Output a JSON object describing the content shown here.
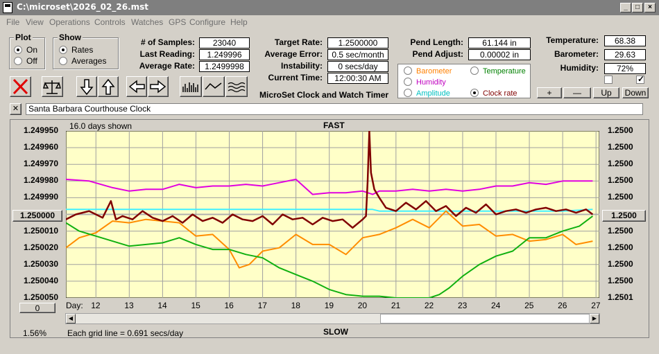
{
  "window": {
    "title": "C:\\microset\\2026_02_26.mst"
  },
  "menu": [
    "File",
    "View",
    "Operations",
    "Controls",
    "Watches",
    "GPS",
    "Configure",
    "Help"
  ],
  "plot_group": {
    "title": "Plot",
    "on": "On",
    "off": "Off",
    "selected": "On"
  },
  "show_group": {
    "title": "Show",
    "rates": "Rates",
    "averages": "Averages",
    "selected": "Rates"
  },
  "stats": {
    "samples_label": "# of Samples:",
    "samples": "23040",
    "last_reading_label": "Last Reading:",
    "last_reading": "1.249996",
    "average_rate_label": "Average Rate:",
    "average_rate": "1.2499998",
    "target_rate_label": "Target Rate:",
    "target_rate": "1.2500000",
    "average_error_label": "Average Error:",
    "average_error": "0.5 sec/month",
    "instability_label": "Instability:",
    "instability": "0 secs/day",
    "current_time_label": "Current Time:",
    "current_time": "12:00:30 AM",
    "pend_length_label": "Pend Length:",
    "pend_length": "61.144 in",
    "pend_adjust_label": "Pend Adjust:",
    "pend_adjust": "0.00002 in",
    "temperature_label": "Temperature:",
    "temperature": "68.38",
    "barometer_label": "Barometer:",
    "barometer": "29.63",
    "humidity_label": "Humidity:",
    "humidity": "72%"
  },
  "app_caption": "MicroSet Clock and Watch Timer",
  "series_selector": {
    "barometer": "Barometer",
    "temperature": "Temperature",
    "humidity": "Humidity",
    "amplitude": "Amplitude",
    "clock_rate": "Clock rate",
    "selected": "Clock rate"
  },
  "adjust_buttons": {
    "plus": "+",
    "minus": "—",
    "up": "Up",
    "down": "Down"
  },
  "clock_name": "Santa Barbara Courthouse Clock",
  "close_glyph": "✕",
  "chart_header": {
    "days_shown": "16.0 days shown",
    "fast": "FAST",
    "slow": "SLOW"
  },
  "center_value": "1.250000",
  "right_center_value": "1.2500",
  "zero_button": "0",
  "footer": {
    "percent": "1.56%",
    "grid_note": "Each grid line = 0.691 secs/day"
  },
  "colors": {
    "plot_bg": "#ffffc8",
    "clock_rate": "#800000",
    "humidity": "#e000e0",
    "amplitude": "#40f0ff",
    "barometer": "#ff8c00",
    "temperature": "#10b010",
    "barometer_label": "#ff8000",
    "temperature_label": "#008000",
    "humidity_label": "#c000c0",
    "amplitude_label": "#00c0c0",
    "clock_rate_label": "#800000"
  },
  "chart_data": {
    "type": "line",
    "x_axis_label": "Day:",
    "xlim": [
      11.1,
      27.1
    ],
    "y_left_ticks": [
      "1.249950",
      "1.249960",
      "1.249970",
      "1.249980",
      "1.249990",
      "",
      "1.250010",
      "1.250020",
      "1.250030",
      "1.250040",
      "1.250050"
    ],
    "y_right_ticks": [
      "1.2500",
      "1.2500",
      "1.2500",
      "1.2500",
      "1.2500",
      "",
      "1.2500",
      "1.2500",
      "1.2500",
      "1.2500",
      "1.2501"
    ],
    "ylim": [
      1.25005,
      1.24995
    ],
    "x_ticks": [
      12,
      13,
      14,
      15,
      16,
      17,
      18,
      19,
      20,
      21,
      22,
      23,
      24,
      25,
      26,
      27
    ],
    "grid": true,
    "series": [
      {
        "key": "humidity",
        "x": [
          11.1,
          11.8,
          12.5,
          13.0,
          13.5,
          14.0,
          14.5,
          15.0,
          15.5,
          16.0,
          16.5,
          17.0,
          17.5,
          18.0,
          18.5,
          19.0,
          19.5,
          20.0,
          20.3,
          20.5,
          21.0,
          21.5,
          22.0,
          22.5,
          23.0,
          23.5,
          24.0,
          24.5,
          25.0,
          25.5,
          26.0,
          26.5,
          26.9
        ],
        "y": [
          1.249979,
          1.24998,
          1.249984,
          1.249986,
          1.249985,
          1.249985,
          1.249982,
          1.249984,
          1.249983,
          1.249983,
          1.249982,
          1.249983,
          1.249981,
          1.249979,
          1.249988,
          1.249987,
          1.249987,
          1.249986,
          1.249988,
          1.249986,
          1.249986,
          1.249985,
          1.249986,
          1.249985,
          1.249986,
          1.249985,
          1.249983,
          1.249983,
          1.249981,
          1.249982,
          1.24998,
          1.24998,
          1.24998
        ]
      },
      {
        "key": "amplitude",
        "x": [
          11.1,
          12.0,
          13.0,
          14.0,
          15.0,
          16.0,
          17.0,
          18.0,
          19.0,
          20.0,
          20.3,
          20.5,
          21.0,
          22.0,
          23.0,
          24.0,
          25.0,
          26.0,
          26.9
        ],
        "y": [
          1.249997,
          1.249997,
          1.249997,
          1.249997,
          1.249997,
          1.249997,
          1.249997,
          1.249997,
          1.249997,
          1.249997,
          1.249997,
          1.249998,
          1.249998,
          1.249998,
          1.249998,
          1.249998,
          1.249998,
          1.249998,
          1.249997
        ]
      },
      {
        "key": "barometer",
        "x": [
          11.1,
          11.5,
          12.0,
          12.5,
          13.0,
          13.5,
          14.0,
          14.5,
          15.0,
          15.5,
          16.0,
          16.3,
          16.6,
          17.0,
          17.5,
          18.0,
          18.5,
          19.0,
          19.5,
          20.0,
          20.5,
          21.0,
          21.5,
          22.0,
          22.5,
          23.0,
          23.5,
          24.0,
          24.5,
          25.0,
          25.5,
          26.0,
          26.4,
          26.9
        ],
        "y": [
          1.25002,
          1.250014,
          1.250011,
          1.250004,
          1.250005,
          1.250003,
          1.250004,
          1.250005,
          1.250013,
          1.250012,
          1.250021,
          1.250032,
          1.25003,
          1.250022,
          1.25002,
          1.250012,
          1.250018,
          1.250018,
          1.250024,
          1.250014,
          1.250012,
          1.250008,
          1.250003,
          1.250008,
          1.249998,
          1.250007,
          1.250006,
          1.250013,
          1.250012,
          1.250016,
          1.250015,
          1.250012,
          1.250018,
          1.250016
        ]
      },
      {
        "key": "temperature",
        "x": [
          11.1,
          11.5,
          12.0,
          12.5,
          13.0,
          13.5,
          14.0,
          14.5,
          15.0,
          15.5,
          16.0,
          16.5,
          17.0,
          17.5,
          18.0,
          18.5,
          19.0,
          19.5,
          20.0,
          20.5,
          21.0,
          21.5,
          22.0,
          22.3,
          22.6,
          23.0,
          23.5,
          24.0,
          24.5,
          25.0,
          25.5,
          26.0,
          26.5,
          26.9
        ],
        "y": [
          1.250005,
          1.25001,
          1.250013,
          1.250016,
          1.250019,
          1.250018,
          1.250017,
          1.250014,
          1.250018,
          1.250021,
          1.250021,
          1.250024,
          1.250026,
          1.250032,
          1.250036,
          1.25004,
          1.250045,
          1.250048,
          1.250049,
          1.250049,
          1.25005,
          1.25005,
          1.25005,
          1.250048,
          1.250044,
          1.250037,
          1.25003,
          1.250025,
          1.250022,
          1.250014,
          1.250014,
          1.25001,
          1.250007,
          1.250001
        ]
      },
      {
        "key": "clock_rate",
        "x": [
          11.1,
          11.4,
          11.8,
          12.2,
          12.45,
          12.6,
          12.8,
          13.1,
          13.4,
          13.7,
          14.0,
          14.3,
          14.6,
          14.9,
          15.2,
          15.5,
          15.8,
          16.1,
          16.4,
          16.7,
          17.0,
          17.3,
          17.6,
          17.9,
          18.2,
          18.5,
          18.8,
          19.1,
          19.4,
          19.7,
          20.0,
          20.1,
          20.15,
          20.2,
          20.25,
          20.35,
          20.5,
          20.7,
          21.0,
          21.3,
          21.6,
          21.9,
          22.2,
          22.5,
          22.8,
          23.1,
          23.4,
          23.7,
          24.0,
          24.3,
          24.6,
          24.9,
          25.2,
          25.5,
          25.8,
          26.1,
          26.4,
          26.7,
          26.9
        ],
        "y": [
          1.250003,
          1.25,
          1.249998,
          1.250002,
          1.249992,
          1.250003,
          1.250001,
          1.250003,
          1.249998,
          1.250002,
          1.250004,
          1.250001,
          1.250005,
          1.25,
          1.250004,
          1.250002,
          1.250005,
          1.25,
          1.250003,
          1.250004,
          1.250001,
          1.250006,
          1.25,
          1.250003,
          1.250002,
          1.250006,
          1.250002,
          1.250004,
          1.250003,
          1.250008,
          1.250003,
          1.250001,
          1.24998,
          1.24995,
          1.249975,
          1.249985,
          1.24999,
          1.249996,
          1.249998,
          1.249993,
          1.249997,
          1.249992,
          1.249998,
          1.249995,
          1.250001,
          1.249996,
          1.249999,
          1.249994,
          1.25,
          1.249998,
          1.249997,
          1.249999,
          1.249997,
          1.249996,
          1.249998,
          1.249997,
          1.249999,
          1.249997,
          1.25
        ]
      }
    ]
  }
}
